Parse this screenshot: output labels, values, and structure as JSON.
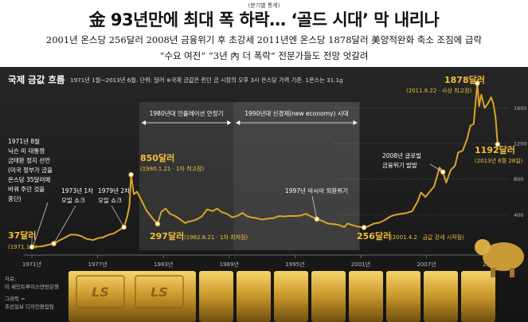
{
  "header": {
    "top_note": "(분기별 통계)",
    "headline": "金 93년만에 최대 폭 하락… ‘골드 시대’ 막 내리나",
    "subline_1": "2001년 온스당 256달러    2008년 금융위기 후 초강세    2011년엔 온스당 1878달러    美양적완화 축소 조짐에 급락",
    "subline_2": "“수요 여전” “3년 內 더 폭락”  전문가들도 전망 엇갈려"
  },
  "chart_data": {
    "type": "line",
    "title": "국제 금값 흐름",
    "subtitle": "1971년 1월~2013년 6월. 단위: 달러  ※국제 금값은 런던 금 시장의 오후 3시 온스당 가격 기준. 1온스는 31.1g",
    "x_ticks": [
      "1971년",
      "1977년",
      "1983년",
      "1989년",
      "1995년",
      "2001년",
      "2007년",
      "2013년"
    ],
    "x_tick_years": [
      1971,
      1977,
      1983,
      1989,
      1995,
      2001,
      2007,
      2013
    ],
    "y_ticks": [
      400,
      800,
      1200,
      1600
    ],
    "xlim": [
      1971,
      2013.5
    ],
    "ylim": [
      0,
      1900
    ],
    "series": [
      {
        "values_x": [
          1971.0,
          1971.5,
          1972.0,
          1972.5,
          1973.0,
          1973.5,
          1974.0,
          1974.5,
          1975.0,
          1975.5,
          1976.0,
          1976.6,
          1977.0,
          1977.5,
          1978.0,
          1978.5,
          1979.0,
          1979.4,
          1979.7,
          1979.9,
          1980.05,
          1980.3,
          1980.6,
          1981.0,
          1981.5,
          1982.0,
          1982.47,
          1982.8,
          1983.2,
          1983.6,
          1984.0,
          1984.5,
          1985.0,
          1985.2,
          1985.6,
          1986.0,
          1986.5,
          1987.0,
          1987.5,
          1987.9,
          1988.3,
          1988.8,
          1989.3,
          1989.8,
          1990.2,
          1990.6,
          1991.0,
          1991.5,
          1992.0,
          1992.5,
          1993.0,
          1993.6,
          1994.0,
          1994.5,
          1995.0,
          1995.5,
          1996.0,
          1996.5,
          1997.0,
          1997.5,
          1998.0,
          1998.5,
          1999.0,
          1999.5,
          1999.8,
          2000.2,
          2000.6,
          2001.0,
          2001.3,
          2001.7,
          2002.2,
          2002.7,
          2003.2,
          2003.7,
          2004.2,
          2004.7,
          2005.2,
          2005.7,
          2006.2,
          2006.5,
          2006.9,
          2007.3,
          2007.7,
          2008.0,
          2008.2,
          2008.5,
          2008.8,
          2009.2,
          2009.6,
          2009.9,
          2010.3,
          2010.7,
          2011.0,
          2011.3,
          2011.64,
          2011.8,
          2012.0,
          2012.3,
          2012.6,
          2012.9,
          2013.1,
          2013.3,
          2013.49
        ],
        "values_y": [
          37,
          40,
          46,
          62,
          75,
          110,
          140,
          175,
          175,
          160,
          128,
          115,
          135,
          145,
          175,
          190,
          230,
          260,
          380,
          500,
          850,
          630,
          660,
          560,
          440,
          360,
          297,
          430,
          470,
          410,
          390,
          350,
          305,
          320,
          330,
          345,
          380,
          460,
          440,
          470,
          430,
          410,
          370,
          390,
          420,
          385,
          370,
          360,
          345,
          355,
          360,
          385,
          380,
          385,
          385,
          390,
          410,
          380,
          350,
          330,
          300,
          295,
          285,
          260,
          300,
          285,
          270,
          260,
          256,
          270,
          300,
          310,
          340,
          380,
          400,
          410,
          420,
          440,
          550,
          650,
          600,
          660,
          720,
          850,
          930,
          880,
          760,
          900,
          950,
          1100,
          1120,
          1250,
          1400,
          1420,
          1878,
          1620,
          1750,
          1600,
          1650,
          1720,
          1650,
          1500,
          1192
        ]
      }
    ],
    "annotations": {
      "a1971": {
        "value": "37달러",
        "date": "(1971.1.4)"
      },
      "nixon": {
        "lines": [
          "1971년 8월",
          "닉슨 미 대통령",
          "금태환 정지 선언",
          "(미국 정부가 금을",
          "온스당 35달러에",
          "바꿔 주던 것을",
          "중단)"
        ]
      },
      "oil1": {
        "lines": [
          "1973년 1차",
          "오일 쇼크"
        ]
      },
      "oil2": {
        "lines": [
          "1979년 2차",
          "오일 쇼크"
        ]
      },
      "p1980": {
        "value": "850달러",
        "date": "(1980.1.21 · 1차 최고점)"
      },
      "p1982": {
        "value": "297달러",
        "date": "(1982.6.21 · 1차 최저점)"
      },
      "asia": {
        "text": "1997년 아시아 외환위기"
      },
      "p2001": {
        "value": "256달러",
        "date": "(2001.4.2 · 금값 강세 시작점)"
      },
      "crisis": {
        "lines": [
          "2008년 글로벌",
          "금융위기 발발"
        ]
      },
      "peak": {
        "value": "1878달러",
        "date": "(2011.8.22 · 사상 최고점)"
      },
      "now": {
        "value": "1192달러",
        "date": "(2013년 6월 28일)"
      }
    },
    "periods": [
      {
        "label": "1980년대 인플레이션 안정기",
        "from": 1980.8,
        "to": 1989.4
      },
      {
        "label": "1990년대 신경제(new economy) 시대",
        "from": 1989.4,
        "to": 2000.9
      }
    ]
  },
  "source": {
    "lines": [
      "자료:",
      "미 세인트루이스연방은행",
      "그래픽 =",
      "조선일보 디자인편집팀"
    ]
  },
  "colors": {
    "accent": "#f2bf3c",
    "line": "#d9a42a",
    "panel": "#1e1e1e"
  }
}
